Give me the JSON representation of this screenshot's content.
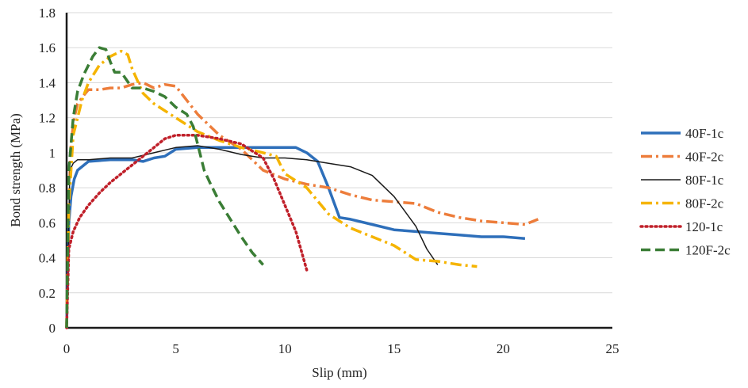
{
  "chart_data": {
    "type": "line",
    "title": "",
    "xlabel": "Slip (mm)",
    "ylabel": "Bond  strength (MPa)",
    "xlim": [
      0,
      25
    ],
    "ylim": [
      0,
      1.8
    ],
    "xticks": [
      0,
      5,
      10,
      15,
      20,
      25
    ],
    "yticks": [
      0,
      0.2,
      0.4,
      0.6,
      0.8,
      1,
      1.2,
      1.4,
      1.6,
      1.8
    ],
    "ytick_labels": [
      "0",
      "0.2",
      "0.4",
      "0.6",
      "0.8",
      "1",
      "1.2",
      "1.4",
      "1.6",
      "1.8"
    ],
    "grid": "horizontal",
    "legend_position": "right",
    "series": [
      {
        "name": "40F-1c",
        "color": "#2e6fba",
        "dash": "solid",
        "width": "thick",
        "x": [
          0,
          0.1,
          0.2,
          0.35,
          0.5,
          1,
          2,
          3,
          3.5,
          4,
          4.5,
          5,
          6,
          7,
          8,
          9,
          10,
          10.5,
          11,
          11.5,
          12,
          12.5,
          13,
          14,
          15,
          16,
          17,
          18,
          19,
          20,
          21
        ],
        "y": [
          0,
          0.6,
          0.75,
          0.85,
          0.9,
          0.95,
          0.96,
          0.96,
          0.95,
          0.97,
          0.98,
          1.02,
          1.03,
          1.03,
          1.03,
          1.03,
          1.03,
          1.03,
          1.0,
          0.95,
          0.8,
          0.63,
          0.62,
          0.59,
          0.56,
          0.55,
          0.54,
          0.53,
          0.52,
          0.52,
          0.51
        ]
      },
      {
        "name": "40F-2c",
        "color": "#ed7d3b",
        "dash": "dashdot",
        "width": "thick",
        "x": [
          0,
          0.1,
          0.2,
          0.35,
          0.5,
          0.8,
          1,
          1.5,
          2,
          2.5,
          3,
          3.5,
          4,
          4.5,
          5,
          5.5,
          6,
          7,
          8,
          9,
          10,
          11,
          12,
          13,
          14,
          15,
          16,
          17,
          18,
          19,
          20,
          21,
          21.6
        ],
        "y": [
          0,
          0.7,
          1.05,
          1.2,
          1.28,
          1.33,
          1.36,
          1.36,
          1.37,
          1.37,
          1.39,
          1.4,
          1.37,
          1.39,
          1.38,
          1.3,
          1.22,
          1.1,
          1.02,
          0.9,
          0.85,
          0.82,
          0.8,
          0.76,
          0.73,
          0.72,
          0.71,
          0.66,
          0.63,
          0.61,
          0.6,
          0.59,
          0.62
        ]
      },
      {
        "name": "80F-1c",
        "color": "#1a1a1a",
        "dash": "solid",
        "width": "thin",
        "x": [
          0,
          0.15,
          0.3,
          0.5,
          1,
          2,
          3,
          4,
          5,
          6,
          7,
          8,
          9,
          10,
          11,
          12,
          13,
          14,
          15,
          16,
          16.5,
          17
        ],
        "y": [
          0,
          0.9,
          0.94,
          0.96,
          0.96,
          0.97,
          0.97,
          1.0,
          1.03,
          1.04,
          1.02,
          0.99,
          0.97,
          0.97,
          0.96,
          0.94,
          0.92,
          0.87,
          0.75,
          0.58,
          0.45,
          0.36
        ]
      },
      {
        "name": "80F-2c",
        "color": "#f5b400",
        "dash": "dashdot",
        "width": "thick",
        "x": [
          0,
          0.1,
          0.3,
          0.5,
          0.7,
          1,
          1.5,
          2,
          2.5,
          2.8,
          3,
          3.5,
          4,
          5,
          6,
          7,
          8,
          9,
          9.6,
          10,
          11,
          12,
          13,
          14,
          15,
          15.5,
          16,
          17,
          18,
          18.8
        ],
        "y": [
          0,
          0.7,
          1.1,
          1.2,
          1.3,
          1.4,
          1.5,
          1.55,
          1.58,
          1.56,
          1.48,
          1.34,
          1.28,
          1.2,
          1.12,
          1.07,
          1.03,
          1.0,
          0.98,
          0.88,
          0.8,
          0.65,
          0.57,
          0.52,
          0.47,
          0.43,
          0.39,
          0.38,
          0.36,
          0.35
        ]
      },
      {
        "name": "120-1c",
        "color": "#c0202a",
        "dash": "dotted",
        "width": "thick",
        "x": [
          0,
          0.1,
          0.3,
          0.6,
          1,
          1.5,
          2,
          2.5,
          3,
          4,
          4.5,
          5,
          5.5,
          6,
          7,
          8,
          9,
          9.5,
          10,
          10.5,
          11
        ],
        "y": [
          0,
          0.45,
          0.55,
          0.63,
          0.7,
          0.77,
          0.83,
          0.88,
          0.93,
          1.03,
          1.08,
          1.1,
          1.1,
          1.1,
          1.08,
          1.05,
          0.97,
          0.85,
          0.7,
          0.55,
          0.33
        ]
      },
      {
        "name": "120F-2c",
        "color": "#3a7d35",
        "dash": "dashed",
        "width": "thick",
        "x": [
          0,
          0.1,
          0.3,
          0.5,
          0.8,
          1.2,
          1.5,
          1.8,
          2,
          2.2,
          2.5,
          3,
          3.5,
          4,
          4.5,
          5,
          5.5,
          5.8,
          6,
          6.3,
          6.6,
          7,
          7.5,
          8,
          8.5,
          9
        ],
        "y": [
          0,
          0.9,
          1.2,
          1.35,
          1.45,
          1.55,
          1.6,
          1.59,
          1.52,
          1.46,
          1.46,
          1.37,
          1.37,
          1.35,
          1.32,
          1.26,
          1.22,
          1.15,
          1.05,
          0.9,
          0.82,
          0.72,
          0.62,
          0.52,
          0.43,
          0.36
        ]
      }
    ]
  }
}
